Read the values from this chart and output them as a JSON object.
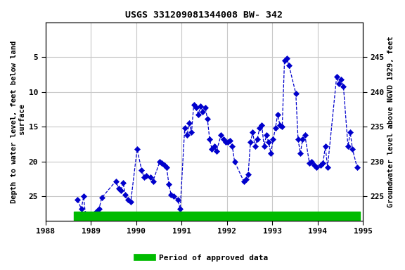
{
  "title": "USGS 331209081344008 BW- 342",
  "ylabel_left": "Depth to water level, feet below land\n surface",
  "ylabel_right": "Groundwater level above NGVD 1929, feet",
  "xlim": [
    1988,
    1995
  ],
  "ylim_left": [
    28.5,
    0
  ],
  "ylim_right": [
    221.5,
    250
  ],
  "left_yticks": [
    5,
    10,
    15,
    20,
    25
  ],
  "right_yticks": [
    225,
    230,
    235,
    240,
    245
  ],
  "xticks": [
    1988,
    1989,
    1990,
    1991,
    1992,
    1993,
    1994,
    1995
  ],
  "background_color": "#ffffff",
  "plot_bg_color": "#ffffff",
  "line_color": "#0000cc",
  "marker_color": "#0000cc",
  "grid_color": "#c8c8c8",
  "approved_bar_color": "#00bb00",
  "legend_label": "Period of approved data",
  "data_x": [
    1988.71,
    1988.79,
    1988.84,
    1988.88,
    1988.96,
    1989.01,
    1989.07,
    1989.12,
    1989.18,
    1989.24,
    1989.55,
    1989.61,
    1989.66,
    1989.71,
    1989.76,
    1989.82,
    1989.88,
    1990.02,
    1990.12,
    1990.17,
    1990.22,
    1990.32,
    1990.37,
    1990.52,
    1990.57,
    1990.62,
    1990.67,
    1990.72,
    1990.77,
    1990.82,
    1990.92,
    1990.97,
    1991.07,
    1991.12,
    1991.17,
    1991.22,
    1991.27,
    1991.32,
    1991.37,
    1991.42,
    1991.47,
    1991.52,
    1991.57,
    1991.62,
    1991.67,
    1991.72,
    1991.77,
    1991.87,
    1991.92,
    1991.97,
    1992.02,
    1992.07,
    1992.12,
    1992.17,
    1992.37,
    1992.42,
    1992.47,
    1992.52,
    1992.57,
    1992.62,
    1992.67,
    1992.72,
    1992.77,
    1992.82,
    1992.87,
    1992.92,
    1992.97,
    1993.02,
    1993.07,
    1993.12,
    1993.17,
    1993.22,
    1993.27,
    1993.32,
    1993.37,
    1993.52,
    1993.57,
    1993.62,
    1993.67,
    1993.72,
    1993.82,
    1993.87,
    1993.92,
    1993.97,
    1994.07,
    1994.12,
    1994.17,
    1994.22,
    1994.42,
    1994.47,
    1994.52,
    1994.57,
    1994.67,
    1994.72,
    1994.77,
    1994.87
  ],
  "data_y": [
    25.5,
    26.8,
    25.0,
    27.5,
    27.8,
    27.9,
    27.6,
    27.2,
    26.8,
    25.2,
    22.8,
    23.8,
    24.2,
    23.0,
    24.8,
    25.5,
    25.8,
    18.2,
    21.2,
    22.2,
    22.0,
    22.2,
    22.8,
    20.0,
    20.2,
    20.5,
    20.8,
    23.2,
    24.8,
    25.0,
    25.5,
    26.8,
    15.2,
    16.2,
    14.5,
    15.8,
    11.8,
    12.2,
    13.2,
    12.0,
    12.8,
    12.2,
    13.8,
    16.8,
    18.2,
    17.8,
    18.5,
    16.2,
    16.8,
    17.2,
    17.2,
    17.0,
    17.8,
    20.0,
    22.8,
    22.5,
    21.8,
    17.2,
    15.8,
    17.8,
    16.8,
    15.2,
    14.8,
    17.8,
    16.2,
    17.2,
    18.8,
    16.8,
    15.2,
    13.2,
    14.8,
    15.0,
    5.5,
    5.2,
    6.2,
    10.2,
    16.8,
    18.8,
    16.8,
    16.2,
    20.2,
    20.0,
    20.5,
    20.8,
    20.5,
    20.2,
    17.8,
    20.8,
    7.8,
    8.8,
    8.2,
    9.2,
    17.8,
    15.8,
    18.2,
    20.8
  ],
  "approved_bar_xstart": 1988.62,
  "approved_bar_xend": 1994.93
}
